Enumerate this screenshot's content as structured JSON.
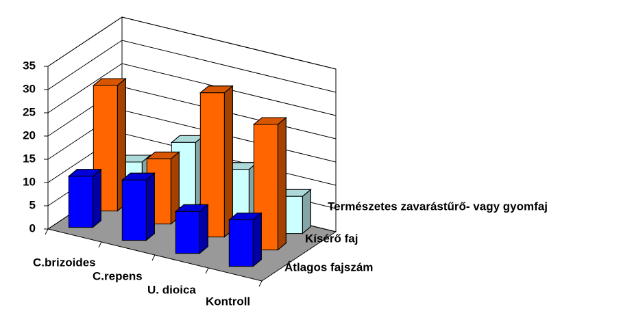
{
  "chart_data": {
    "type": "bar3d",
    "categories": [
      "C.brizoides",
      "C.repens",
      "U. dioica",
      "Kontroll"
    ],
    "series": [
      {
        "name": "Átlagos fajszám",
        "color": "#0000ff",
        "values": [
          11,
          13,
          9,
          10
        ]
      },
      {
        "name": "Kísérő faj",
        "color": "#ff6600",
        "values": [
          27,
          14,
          31,
          27
        ]
      },
      {
        "name": "Természetes zavarástűrő- vagy gyomfaj",
        "color": "#ccffff",
        "values": [
          7,
          14,
          11,
          8
        ]
      }
    ],
    "ylim": [
      0,
      35
    ],
    "yticks": [
      0,
      5,
      10,
      15,
      20,
      25,
      30,
      35
    ],
    "grid": true
  }
}
